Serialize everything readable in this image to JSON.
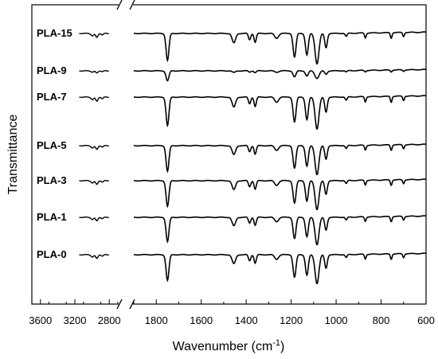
{
  "chart_data": {
    "type": "line",
    "xlabel": "Wavenumber (cm",
    "xlabel_sup": "-1",
    "xlabel_end": ")",
    "ylabel": "Transmittance",
    "x_axis": "reversed, broken between 2700 and 1900 cm-1",
    "x_segments": [
      [
        3700,
        2700
      ],
      [
        1900,
        600
      ]
    ],
    "x_ticks_left": [
      "3600",
      "3200",
      "2800"
    ],
    "x_ticks_right": [
      "1800",
      "1600",
      "1400",
      "1200",
      "1000",
      "800",
      "600"
    ],
    "grid": false,
    "legend": "none (series labeled inline at left)",
    "stacked_offsets": true,
    "series": [
      {
        "name": "PLA-15",
        "scale": 1.0,
        "style": "heavy"
      },
      {
        "name": "PLA-9",
        "scale": 0.55,
        "style": "light"
      },
      {
        "name": "PLA-7",
        "scale": 1.05,
        "style": "heavy"
      },
      {
        "name": "PLA-5",
        "scale": 0.95,
        "style": "heavy"
      },
      {
        "name": "PLA-3",
        "scale": 0.95,
        "style": "heavy"
      },
      {
        "name": "PLA-1",
        "scale": 0.9,
        "style": "heavy"
      },
      {
        "name": "PLA-0",
        "scale": 0.95,
        "style": "heavy"
      }
    ],
    "peaks_cm-1": [
      2995,
      2945,
      1750,
      1455,
      1385,
      1360,
      1265,
      1185,
      1130,
      1085,
      1045,
      955,
      870,
      755,
      700
    ]
  }
}
